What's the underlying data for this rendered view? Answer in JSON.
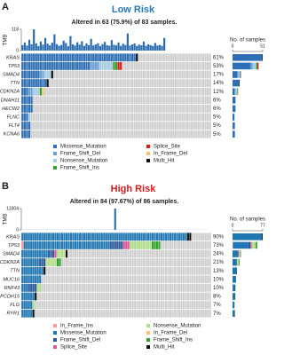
{
  "chart_data": [
    {
      "type": "oncoplot",
      "panel": "A",
      "title": "Low Risk",
      "title_color": "#2a78b5",
      "subtitle": "Altered in 63 (75.9%) of 83 samples.",
      "samples": 83,
      "tmb_label": "TMB",
      "tmb_ylim": [
        0,
        118
      ],
      "tmb_yticks": [
        0,
        118
      ],
      "tmb": [
        30,
        45,
        28,
        60,
        35,
        118,
        40,
        25,
        50,
        33,
        70,
        38,
        29,
        44,
        90,
        36,
        27,
        31,
        55,
        42,
        24,
        80,
        35,
        28,
        46,
        33,
        52,
        26,
        39,
        30,
        65,
        28,
        34,
        41,
        25,
        36,
        48,
        30,
        27,
        58,
        32,
        29,
        45,
        26,
        38,
        31,
        95,
        28,
        34,
        40,
        26,
        33,
        29,
        50,
        27,
        35,
        30,
        25,
        42,
        28,
        31,
        26,
        70
      ],
      "genes": [
        "KRAS",
        "TP53",
        "SMAD4",
        "TTN",
        "CDKN2A",
        "DNAH11",
        "HECW2",
        "FLNC",
        "FLT4",
        "KCNA6"
      ],
      "values": [
        61,
        53,
        17,
        14,
        12,
        6,
        6,
        5,
        5,
        5
      ],
      "value_labels": [
        "61%",
        "53%",
        "17%",
        "14%",
        "12%",
        "6%",
        "6%",
        "5%",
        "5%",
        "5%"
      ],
      "bar_label": "No. of samples",
      "bar_xlim": [
        0,
        51
      ],
      "bar_xticks": [
        0,
        51
      ],
      "series": [
        {
          "name": "Missense_Mutation",
          "color": "#2f6fb5",
          "values": [
            50,
            30,
            8,
            11,
            3,
            5,
            5,
            3,
            4,
            4
          ]
        },
        {
          "name": "Frame_Shift_Del",
          "color": "#6a9fd4",
          "values": [
            0,
            4,
            2,
            0,
            2,
            0,
            0,
            0,
            0,
            0
          ]
        },
        {
          "name": "Nonsense_Mutation",
          "color": "#a6cee3",
          "values": [
            0,
            6,
            3,
            0,
            3,
            0,
            0,
            1,
            0,
            0
          ]
        },
        {
          "name": "Frame_Shift_Ins",
          "color": "#33a02c",
          "values": [
            0,
            2,
            0,
            0,
            1,
            0,
            0,
            0,
            0,
            0
          ]
        },
        {
          "name": "Splice_Site",
          "color": "#e31a1c",
          "values": [
            0,
            2,
            0,
            0,
            0,
            0,
            0,
            0,
            0,
            0
          ]
        },
        {
          "name": "In_Frame_Del",
          "color": "#fdbf6f",
          "values": [
            0,
            0,
            0,
            0,
            1,
            0,
            0,
            0,
            0,
            0
          ]
        },
        {
          "name": "Multi_Hit",
          "color": "#111111",
          "values": [
            1,
            0,
            1,
            1,
            0,
            0,
            0,
            0,
            0,
            0
          ]
        }
      ]
    },
    {
      "type": "oncoplot",
      "panel": "B",
      "title": "High Risk",
      "title_color": "#d7191c",
      "subtitle": "Altered in 84 (97.67%) of 86 samples.",
      "samples": 86,
      "tmb_label": "TMB",
      "tmb_ylim": [
        0,
        13304
      ],
      "tmb_yticks": [
        0,
        13304
      ],
      "tmb": [
        60,
        80,
        45,
        120,
        70,
        55,
        90,
        40,
        65,
        75,
        50,
        85,
        60,
        45,
        70,
        95,
        55,
        40,
        65,
        80,
        50,
        60,
        75,
        45,
        90,
        55,
        70,
        40,
        60,
        85,
        50,
        65,
        45,
        75,
        55,
        60,
        80,
        40,
        70,
        50,
        65,
        55,
        13304,
        60,
        45,
        75,
        50,
        70,
        40,
        65,
        55,
        80,
        45,
        60,
        50,
        70,
        40,
        65,
        55,
        75,
        45,
        60,
        50,
        85,
        40,
        55,
        70,
        45,
        60,
        50,
        65,
        40,
        55,
        70,
        45,
        60,
        50,
        40,
        55,
        45,
        60,
        40,
        50,
        45
      ],
      "genes": [
        "KRAS",
        "TP53",
        "SMAD4",
        "CDKN2A",
        "TTN",
        "MUC16",
        "RNF43",
        "PCDH15",
        "FLG",
        "RYR1"
      ],
      "values": [
        90,
        73,
        24,
        21,
        13,
        10,
        10,
        8,
        7,
        7
      ],
      "value_labels": [
        "90%",
        "73%",
        "24%",
        "21%",
        "13%",
        "10%",
        "10%",
        "8%",
        "7%",
        "7%"
      ],
      "bar_label": "No. of samples",
      "bar_xlim": [
        0,
        77
      ],
      "bar_xticks": [
        0,
        77
      ],
      "series": [
        {
          "name": "In_Frame_Ins",
          "color": "#fb9a99",
          "values": [
            0,
            1,
            0,
            0,
            0,
            0,
            0,
            0,
            0,
            0
          ]
        },
        {
          "name": "Missense_Mutation",
          "color": "#1f78b4",
          "values": [
            75,
            39,
            12,
            8,
            10,
            9,
            3,
            6,
            5,
            5
          ]
        },
        {
          "name": "Frame_Shift_Del",
          "color": "#2b5a9c",
          "values": [
            0,
            6,
            3,
            3,
            0,
            0,
            4,
            0,
            0,
            0
          ]
        },
        {
          "name": "Splice_Site",
          "color": "#e0559a",
          "values": [
            0,
            3,
            1,
            0,
            0,
            0,
            0,
            0,
            0,
            0
          ]
        },
        {
          "name": "Nonsense_Mutation",
          "color": "#b2df8a",
          "values": [
            0,
            10,
            4,
            5,
            0,
            0,
            2,
            0,
            1,
            0
          ]
        },
        {
          "name": "In_Frame_Del",
          "color": "#fdbf6f",
          "values": [
            0,
            0,
            0,
            0,
            0,
            0,
            0,
            0,
            0,
            0
          ]
        },
        {
          "name": "Frame_Shift_Ins",
          "color": "#33a02c",
          "values": [
            0,
            4,
            0,
            2,
            0,
            0,
            0,
            0,
            0,
            0
          ]
        },
        {
          "name": "Multi_Hit",
          "color": "#111111",
          "values": [
            2,
            0,
            1,
            0,
            1,
            0,
            0,
            1,
            0,
            1
          ]
        }
      ]
    }
  ]
}
